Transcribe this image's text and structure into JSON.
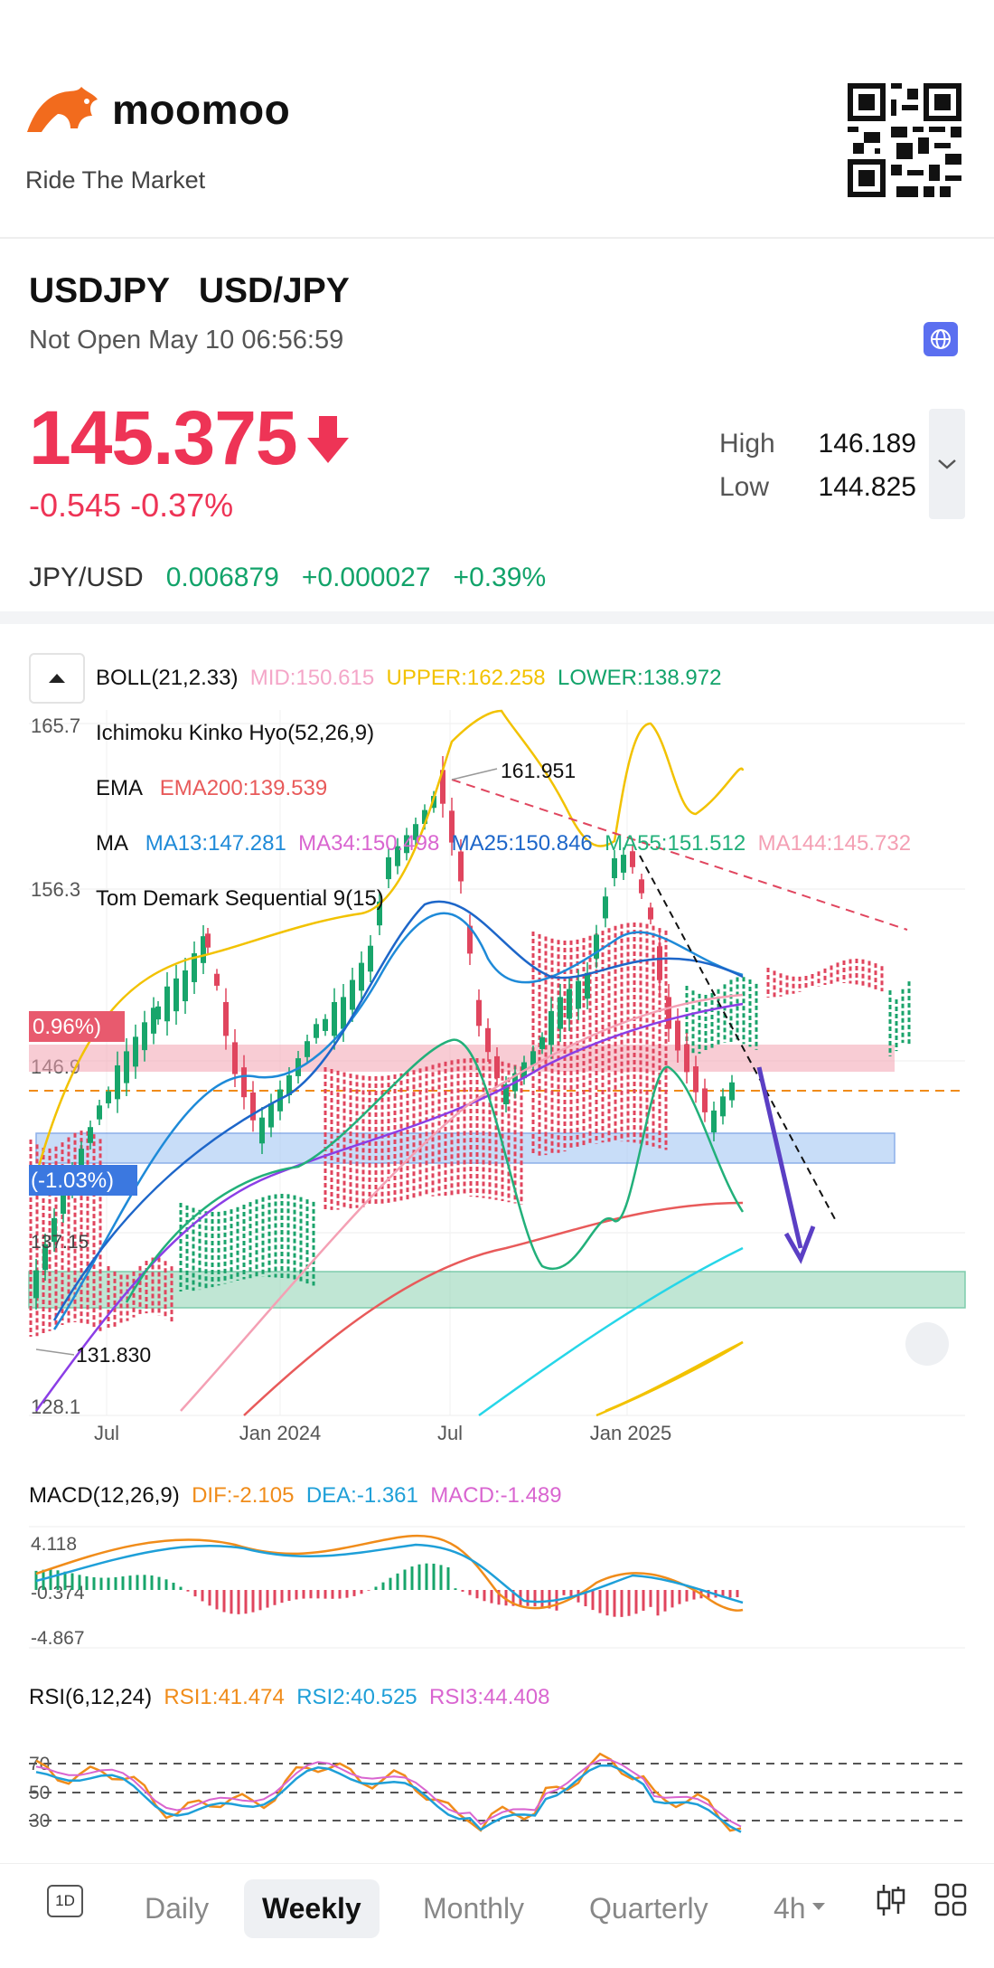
{
  "brand": {
    "name": "moomoo",
    "slogan": "Ride The Market"
  },
  "quote": {
    "symbol": "USDJPY",
    "name": "USD/JPY",
    "status": "Not Open May 10 06:56:59",
    "price": "145.375",
    "change": "-0.545 -0.37%",
    "high_label": "High",
    "high": "146.189",
    "low_label": "Low",
    "low": "144.825",
    "inverse_pair": "JPY/USD",
    "inverse_price": "0.006879",
    "inverse_change": "+0.000027",
    "inverse_pct": "+0.39%"
  },
  "colors": {
    "down": "#ee3456",
    "up": "#12a36a",
    "accent": "#5b6ff0"
  },
  "indicators": {
    "boll": {
      "name": "BOLL(21,2.33)",
      "mid": "MID:150.615",
      "upper": "UPPER:162.258",
      "lower": "LOWER:138.972"
    },
    "ichimoku": "Ichimoku Kinko Hyo(52,26,9)",
    "ema": {
      "name": "EMA",
      "ema200": "EMA200:139.539"
    },
    "ma": {
      "name": "MA",
      "ma13": "MA13:147.281",
      "ma34": "MA34:150.498",
      "ma25": "MA25:150.846",
      "ma55": "MA55:151.512",
      "ma144": "MA144:145.732"
    },
    "td": "Tom Demark Sequential 9(15)",
    "macd": {
      "name": "MACD(12,26,9)",
      "dif": "DIF:-2.105",
      "dea": "DEA:-1.361",
      "macd": "MACD:-1.489"
    },
    "rsi": {
      "name": "RSI(6,12,24)",
      "rsi1": "RSI1:41.474",
      "rsi2": "RSI2:40.525",
      "rsi3": "RSI3:44.408"
    }
  },
  "chart_data": {
    "type": "candlestick",
    "y_axis": {
      "top": "165.7",
      "upper": "156.3",
      "mid": "146.9",
      "bottom": "128.1"
    },
    "x_labels": [
      "Jul",
      "Jan 2024",
      "Jul",
      "Jan 2025"
    ],
    "annotations": {
      "high": "161.951",
      "low": "131.830",
      "zone_up": "0.96%)",
      "zone_down": "(-1.03%)",
      "mid_label": "137.15"
    },
    "macd_axis": {
      "top": "4.118",
      "mid": "-0.374",
      "bottom": "-4.867"
    },
    "rsi_axis": {
      "l70": "70",
      "l50": "50",
      "l30": "30"
    }
  },
  "tabs": {
    "intraday": "1D",
    "daily": "Daily",
    "weekly": "Weekly",
    "monthly": "Monthly",
    "quarterly": "Quarterly",
    "hour": "4h"
  }
}
